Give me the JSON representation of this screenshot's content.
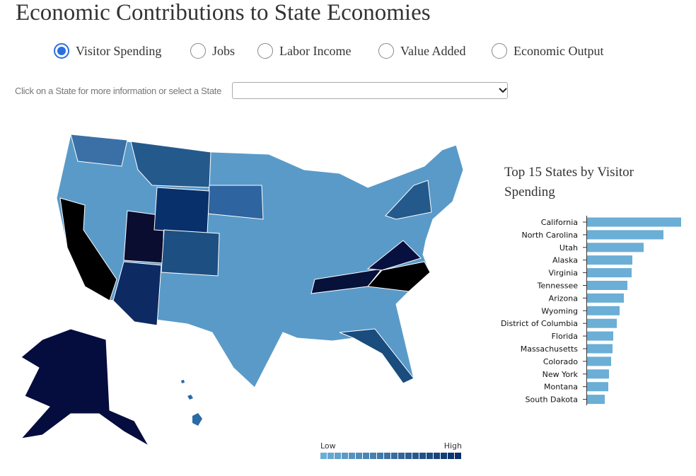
{
  "header": {
    "title": "Economic Contributions to State Economies"
  },
  "options": [
    "Visitor Spending",
    "Jobs",
    "Labor Income",
    "Value Added",
    "Economic Output"
  ],
  "selected_option": 0,
  "select_prompt": "Click on a State for more information or select a State",
  "map_legend": {
    "low": "Low",
    "high": "High"
  },
  "chart_data": {
    "type": "bar",
    "orientation": "horizontal",
    "title": "Top 15 States by Visitor Spending",
    "color": "#6baed6",
    "categories": [
      "California",
      "North Carolina",
      "Utah",
      "Alaska",
      "Virginia",
      "Tennessee",
      "Arizona",
      "Wyoming",
      "District of Columbia",
      "Florida",
      "Massachusetts",
      "Colorado",
      "New York",
      "Montana",
      "South Dakota"
    ],
    "values": [
      133,
      108,
      80,
      64,
      63,
      57,
      52,
      46,
      42,
      37,
      36,
      34,
      31,
      30,
      25
    ]
  }
}
